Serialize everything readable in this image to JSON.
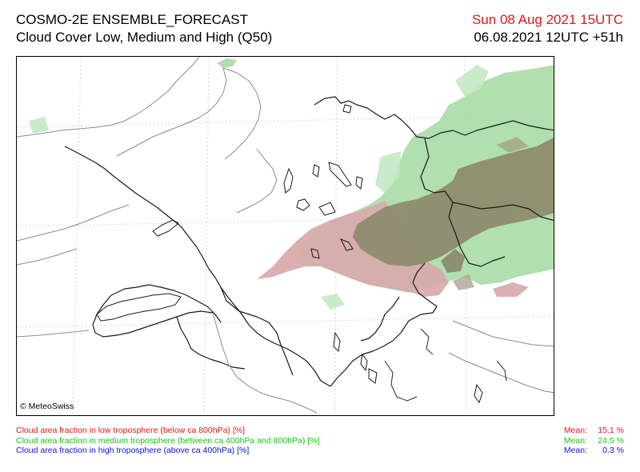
{
  "header": {
    "title": "COSMO-2E ENSEMBLE_FORECAST",
    "subtitle": "Cloud Cover Low, Medium and High (Q50)",
    "valid_time": "Sun 08 Aug 2021 15UTC",
    "run_time": "06.08.2021 12UTC +51h",
    "valid_color": "#e0161b"
  },
  "map": {
    "copyright": "© MeteoSwiss",
    "layers": {
      "low": {
        "color": "#c98a8a"
      },
      "medium": {
        "color": "#9dd59d"
      },
      "overlap": {
        "color": "#8a8a6a"
      }
    }
  },
  "legend": [
    {
      "label": "Cloud area fraction in low troposphere (below ca 800hPa) [%]",
      "mean_label": "Mean:",
      "mean_value": "15.1 %",
      "color": "#e0161b"
    },
    {
      "label": "Cloud area fraction in medium troposphere (between ca 400hPa and 800hPa) [%]",
      "mean_label": "Mean:",
      "mean_value": "24.5 %",
      "color": "#11c811"
    },
    {
      "label": "Cloud area fraction in high troposphere (above ca 400hPa) [%]",
      "mean_label": "Mean:",
      "mean_value": "0.3 %",
      "color": "#1010e0"
    }
  ]
}
